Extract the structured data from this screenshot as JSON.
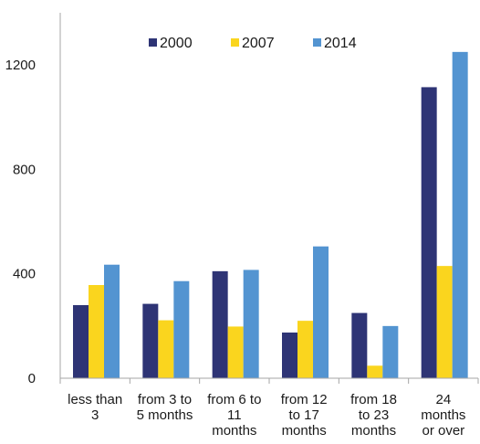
{
  "chart_data": {
    "type": "bar",
    "categories": [
      [
        "less than",
        "3"
      ],
      [
        "from 3 to",
        "5 months"
      ],
      [
        "from 6 to",
        "11",
        "months"
      ],
      [
        "from 12",
        "to 17",
        "months"
      ],
      [
        "from 18",
        "to 23",
        "months"
      ],
      [
        "24",
        "months",
        "or over"
      ]
    ],
    "series": [
      {
        "name": "2000",
        "color": "#2e3475",
        "values": [
          280,
          285,
          410,
          175,
          250,
          1115
        ]
      },
      {
        "name": "2007",
        "color": "#fad51e",
        "values": [
          357,
          222,
          198,
          220,
          48,
          430
        ]
      },
      {
        "name": "2014",
        "color": "#5394d1",
        "values": [
          435,
          372,
          415,
          505,
          200,
          1250
        ]
      }
    ],
    "yticks": [
      "0",
      "400",
      "800",
      "1200"
    ],
    "ylim": [
      0,
      1400
    ],
    "legend_position": "top",
    "grid": false
  }
}
